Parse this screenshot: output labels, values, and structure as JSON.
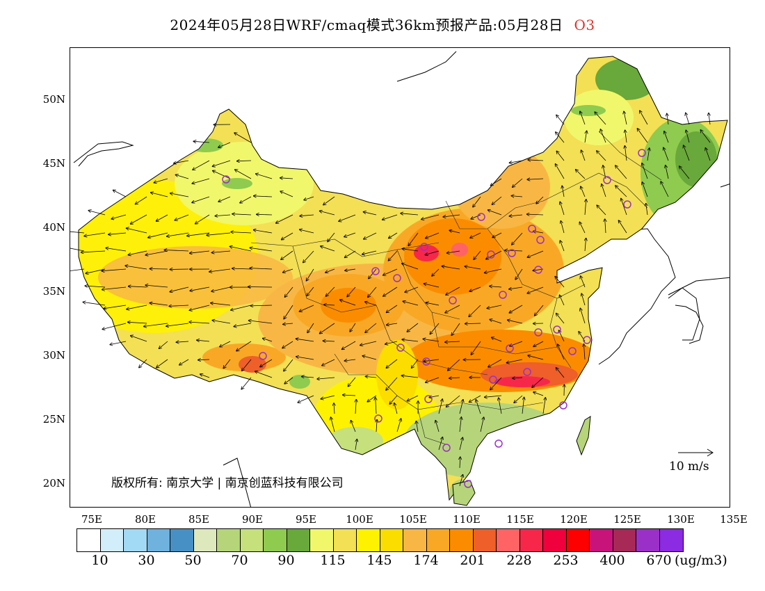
{
  "title": {
    "main": "2024年05月28日WRF/cmaq模式36km预报产品:05月28日",
    "product": "O3"
  },
  "axes": {
    "lat_labels": [
      "50N",
      "45N",
      "40N",
      "35N",
      "30N",
      "25N",
      "20N"
    ],
    "lon_labels": [
      "75E",
      "80E",
      "85E",
      "90E",
      "95E",
      "100E",
      "105E",
      "110E",
      "115E",
      "120E",
      "125E",
      "130E",
      "135E"
    ]
  },
  "credit": "版权所有: 南京大学 | 南京创蓝科技有限公司",
  "wind_scale": {
    "label": "10 m/s"
  },
  "legend": {
    "colors": [
      "#ffffff",
      "#d3eefb",
      "#a2d9f5",
      "#6fb2de",
      "#4790c6",
      "#dde9bd",
      "#b6d57a",
      "#c6e07c",
      "#8ecb4f",
      "#69a83a",
      "#f1f76a",
      "#f3e054",
      "#fff200",
      "#fbdd00",
      "#f8b744",
      "#f9a825",
      "#fb8c00",
      "#ee5f2a",
      "#ff6363",
      "#f7274a",
      "#f0003c",
      "#ff0000",
      "#c8137b",
      "#a72955",
      "#9b30c8",
      "#8b2be2"
    ],
    "labels": [
      "10",
      "30",
      "50",
      "70",
      "90",
      "115",
      "145",
      "174",
      "201",
      "228",
      "253",
      "400",
      "670"
    ],
    "units": "(ug/m3)"
  },
  "colors": {
    "land_base": "#f3e054",
    "title_product": "#e0302a",
    "station_marker": "#9b30c8"
  }
}
